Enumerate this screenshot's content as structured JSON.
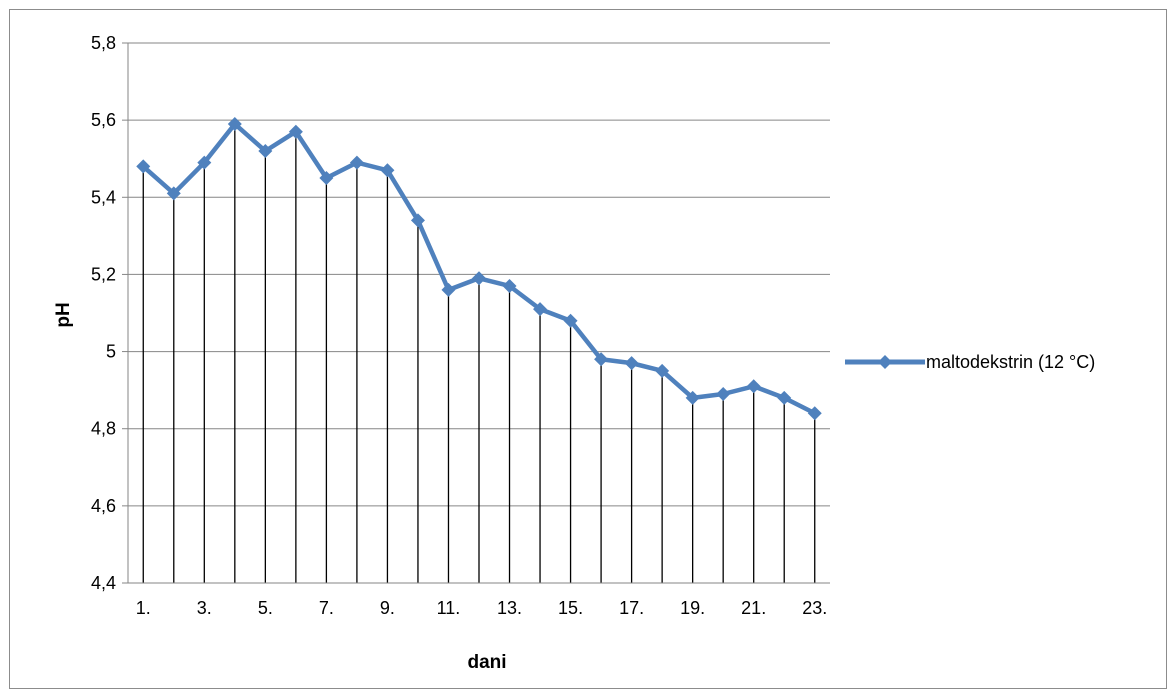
{
  "chart_data": {
    "type": "line",
    "xlabel": "dani",
    "ylabel": "pH",
    "ylim": [
      4.4,
      5.8
    ],
    "yticks": [
      "4,4",
      "4,6",
      "4,8",
      "5",
      "5,2",
      "5,4",
      "5,6",
      "5,8"
    ],
    "ytick_values": [
      4.4,
      4.6,
      4.8,
      5.0,
      5.2,
      5.4,
      5.6,
      5.8
    ],
    "categories": [
      "1.",
      "2.",
      "3.",
      "4.",
      "5.",
      "6.",
      "7.",
      "8.",
      "9.",
      "10.",
      "11.",
      "12.",
      "13.",
      "14.",
      "15.",
      "16.",
      "17.",
      "18.",
      "19.",
      "20.",
      "21.",
      "22.",
      "23."
    ],
    "xtick_labels": [
      "1.",
      "",
      "3.",
      "",
      "5.",
      "",
      "7.",
      "",
      "9.",
      "",
      "11.",
      "",
      "13.",
      "",
      "15.",
      "",
      "17.",
      "",
      "19.",
      "",
      "21.",
      "",
      "23."
    ],
    "grid": true,
    "legend_position": "right",
    "series": [
      {
        "name": "maltodekstrin (12 °C)",
        "color": "#4f81bd",
        "marker": "diamond",
        "drop_lines": true,
        "values": [
          5.48,
          5.41,
          5.49,
          5.59,
          5.52,
          5.57,
          5.45,
          5.49,
          5.47,
          5.34,
          5.16,
          5.19,
          5.17,
          5.11,
          5.08,
          4.98,
          4.97,
          4.95,
          4.88,
          4.89,
          4.91,
          4.88,
          4.84
        ]
      }
    ]
  }
}
